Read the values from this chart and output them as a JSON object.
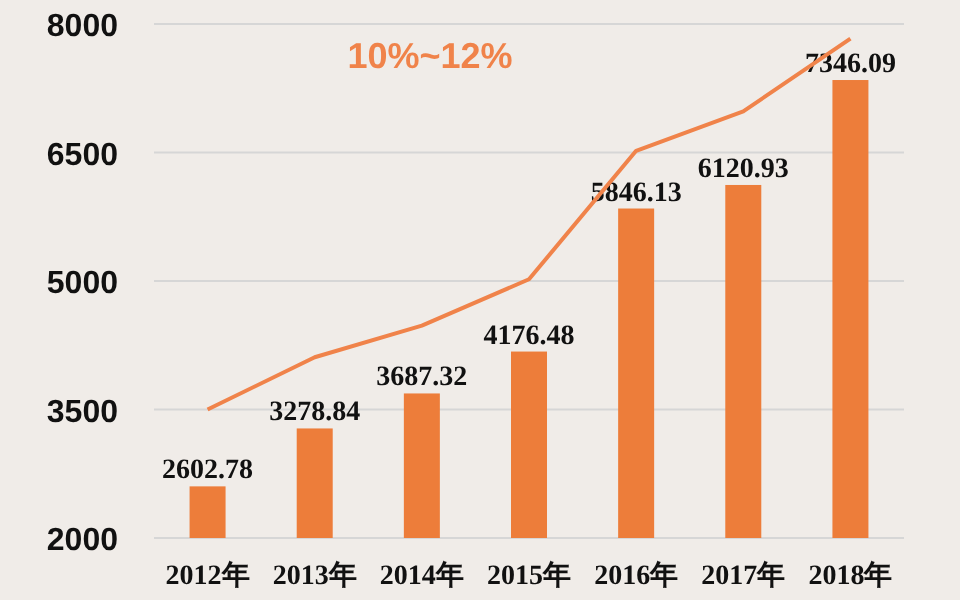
{
  "chart_data": {
    "type": "bar",
    "categories": [
      "2012年",
      "2013年",
      "2014年",
      "2015年",
      "2016年",
      "2017年",
      "2018年"
    ],
    "series": [
      {
        "color": "#ed7d3a",
        "values": [
          2602.78,
          3278.84,
          3687.32,
          4176.48,
          5846.13,
          6120.93,
          7346.09
        ],
        "data_labels": true
      },
      {
        "type": "line",
        "color": "#f0834a",
        "values": [
          3500,
          4110,
          4480,
          5020,
          6520,
          6980,
          7830
        ]
      }
    ],
    "ylim": [
      2000,
      8000
    ],
    "yticks": [
      2000,
      3500,
      5000,
      6500,
      8000
    ],
    "grid": "y",
    "annotations": [
      "10%~12%"
    ]
  }
}
